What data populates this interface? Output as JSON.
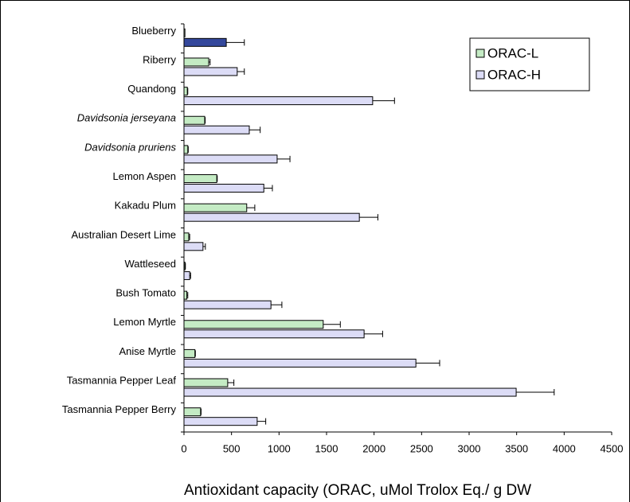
{
  "chart_data": {
    "type": "hbar",
    "categories": [
      "Blueberry",
      "Riberry",
      "Quandong",
      "Davidsonia jerseyana",
      "Davidsonia pruriens",
      "Lemon Aspen",
      "Kakadu Plum",
      "Australian Desert Lime",
      "Wattleseed",
      "Bush Tomato",
      "Lemon Myrtle",
      "Anise Myrtle",
      "Tasmannia Pepper Leaf",
      "Tasmannia Pepper Berry"
    ],
    "italic_categories": [
      3,
      4
    ],
    "series": [
      {
        "name": "ORAC-L",
        "color": "#c4ebc4",
        "values": [
          10,
          260,
          35,
          218,
          40,
          345,
          660,
          50,
          10,
          30,
          1465,
          115,
          460,
          175
        ],
        "errors": [
          null,
          15,
          5,
          5,
          5,
          5,
          85,
          10,
          5,
          10,
          180,
          5,
          65,
          5
        ]
      },
      {
        "name": "ORAC-H",
        "color": "#dcdcf6",
        "point_colors": [
          "#34489c",
          "#dcdcf6",
          "#dcdcf6",
          "#dcdcf6",
          "#dcdcf6",
          "#dcdcf6",
          "#dcdcf6",
          "#dcdcf6",
          "#dcdcf6",
          "#dcdcf6",
          "#dcdcf6",
          "#dcdcf6",
          "#dcdcf6",
          "#dcdcf6"
        ],
        "values": [
          445,
          560,
          1985,
          687,
          980,
          840,
          1845,
          200,
          60,
          915,
          1895,
          2440,
          3495,
          770
        ],
        "errors": [
          190,
          75,
          230,
          115,
          135,
          90,
          195,
          25,
          10,
          115,
          195,
          250,
          400,
          90
        ]
      }
    ],
    "x_label": "Antioxidant capacity (ORAC, uMol Trolox Eq./ g DW",
    "xlim": [
      0,
      4500
    ],
    "xticks": [
      0,
      500,
      1000,
      1500,
      2000,
      2500,
      3000,
      3500,
      4000,
      4500
    ],
    "legend": "upper-right"
  }
}
